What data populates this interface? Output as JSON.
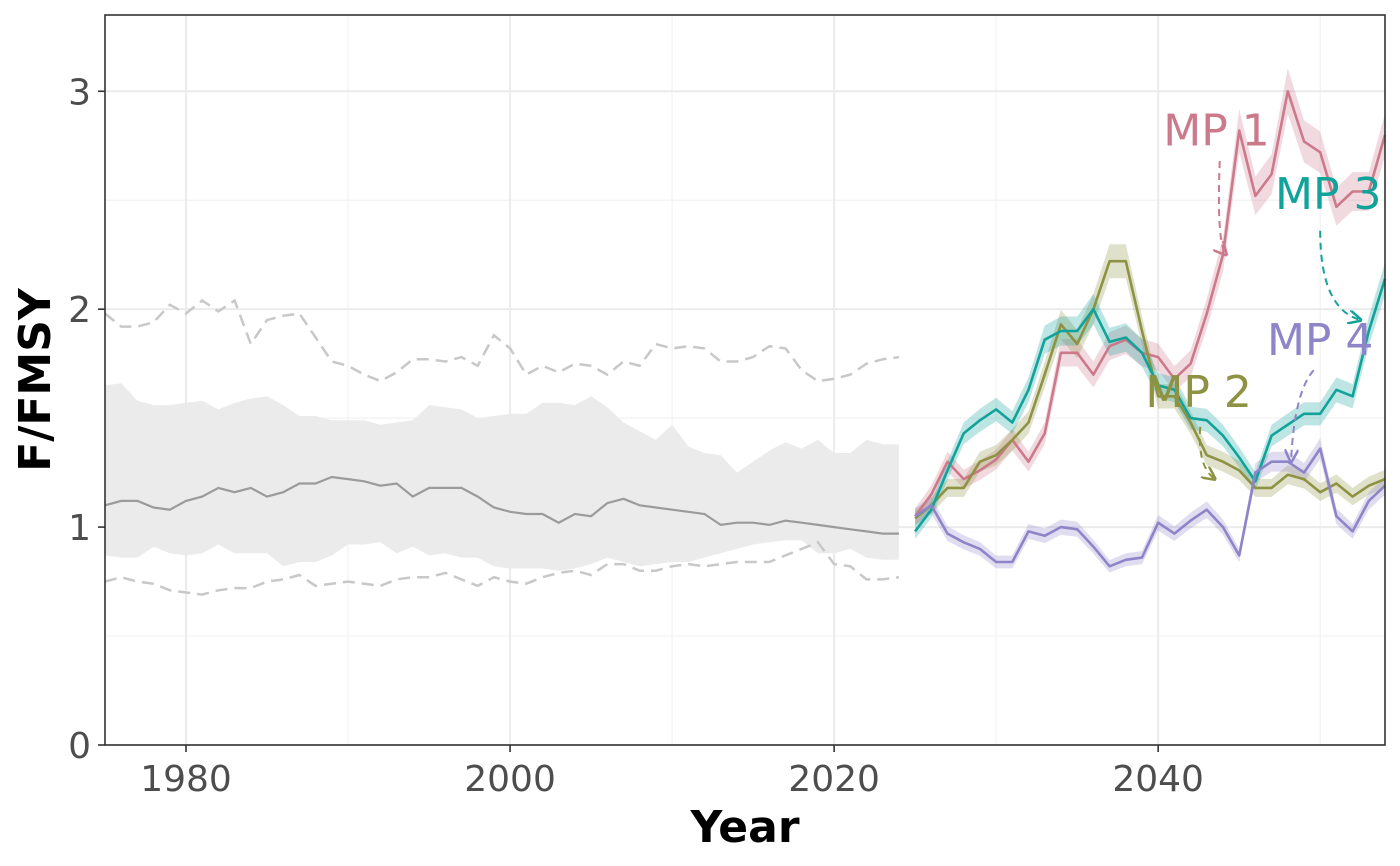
{
  "chart_data": {
    "type": "line",
    "title": "",
    "xlabel": "Year",
    "ylabel": "F/FMSY",
    "xlim": [
      1975,
      2054
    ],
    "ylim": [
      0,
      3.35
    ],
    "x_ticks": [
      1980,
      2000,
      2020,
      2040
    ],
    "y_ticks": [
      0,
      1,
      2,
      3
    ],
    "grid": true,
    "historical": {
      "x": [
        1975,
        1976,
        1977,
        1978,
        1979,
        1980,
        1981,
        1982,
        1983,
        1984,
        1985,
        1986,
        1987,
        1988,
        1989,
        1990,
        1991,
        1992,
        1993,
        1994,
        1995,
        1996,
        1997,
        1998,
        1999,
        2000,
        2001,
        2002,
        2003,
        2004,
        2005,
        2006,
        2007,
        2008,
        2009,
        2010,
        2011,
        2012,
        2013,
        2014,
        2015,
        2016,
        2017,
        2018,
        2019,
        2020,
        2021,
        2022,
        2023,
        2024
      ],
      "median": [
        1.1,
        1.12,
        1.12,
        1.09,
        1.08,
        1.12,
        1.14,
        1.18,
        1.16,
        1.18,
        1.14,
        1.16,
        1.2,
        1.2,
        1.23,
        1.22,
        1.21,
        1.19,
        1.2,
        1.14,
        1.18,
        1.18,
        1.18,
        1.14,
        1.09,
        1.07,
        1.06,
        1.06,
        1.02,
        1.06,
        1.05,
        1.11,
        1.13,
        1.1,
        1.09,
        1.08,
        1.07,
        1.06,
        1.01,
        1.02,
        1.02,
        1.01,
        1.03,
        1.02,
        1.01,
        1.0,
        0.99,
        0.98,
        0.97,
        0.97
      ],
      "band_upper": [
        1.65,
        1.66,
        1.58,
        1.56,
        1.56,
        1.57,
        1.58,
        1.54,
        1.57,
        1.59,
        1.6,
        1.56,
        1.51,
        1.51,
        1.49,
        1.49,
        1.49,
        1.47,
        1.48,
        1.49,
        1.56,
        1.55,
        1.54,
        1.5,
        1.51,
        1.52,
        1.52,
        1.57,
        1.57,
        1.56,
        1.6,
        1.55,
        1.48,
        1.44,
        1.4,
        1.47,
        1.37,
        1.34,
        1.33,
        1.25,
        1.3,
        1.35,
        1.39,
        1.36,
        1.4,
        1.34,
        1.34,
        1.4,
        1.38,
        1.38
      ],
      "band_lower": [
        0.87,
        0.86,
        0.86,
        0.91,
        0.88,
        0.87,
        0.88,
        0.92,
        0.88,
        0.88,
        0.88,
        0.82,
        0.84,
        0.84,
        0.87,
        0.92,
        0.92,
        0.93,
        0.88,
        0.91,
        0.87,
        0.88,
        0.86,
        0.86,
        0.82,
        0.81,
        0.81,
        0.81,
        0.8,
        0.81,
        0.83,
        0.86,
        0.84,
        0.82,
        0.83,
        0.84,
        0.84,
        0.86,
        0.88,
        0.9,
        0.92,
        0.93,
        0.94,
        0.94,
        0.88,
        0.88,
        0.9,
        0.86,
        0.85,
        0.85
      ],
      "dashed_upper": [
        1.98,
        1.92,
        1.92,
        1.94,
        2.02,
        1.98,
        2.04,
        1.99,
        2.04,
        1.84,
        1.95,
        1.97,
        1.98,
        1.87,
        1.76,
        1.74,
        1.7,
        1.67,
        1.71,
        1.77,
        1.77,
        1.76,
        1.78,
        1.74,
        1.88,
        1.82,
        1.7,
        1.74,
        1.71,
        1.75,
        1.74,
        1.7,
        1.76,
        1.74,
        1.84,
        1.82,
        1.83,
        1.82,
        1.76,
        1.76,
        1.78,
        1.83,
        1.82,
        1.72,
        1.67,
        1.68,
        1.7,
        1.75,
        1.77,
        1.78
      ],
      "dashed_lower": [
        0.75,
        0.77,
        0.75,
        0.74,
        0.71,
        0.7,
        0.69,
        0.71,
        0.72,
        0.72,
        0.75,
        0.76,
        0.78,
        0.73,
        0.74,
        0.75,
        0.74,
        0.73,
        0.76,
        0.77,
        0.77,
        0.79,
        0.76,
        0.73,
        0.77,
        0.75,
        0.74,
        0.77,
        0.79,
        0.8,
        0.78,
        0.83,
        0.83,
        0.8,
        0.8,
        0.82,
        0.83,
        0.82,
        0.83,
        0.84,
        0.84,
        0.84,
        0.87,
        0.9,
        0.93,
        0.83,
        0.82,
        0.76,
        0.76,
        0.77
      ]
    },
    "series": [
      {
        "name": "MP 1",
        "x": [
          2025,
          2026,
          2027,
          2028,
          2029,
          2030,
          2031,
          2032,
          2033,
          2034,
          2035,
          2036,
          2037,
          2038,
          2039,
          2040,
          2041,
          2042,
          2043,
          2044,
          2045,
          2046,
          2047,
          2048,
          2049,
          2050,
          2051,
          2052,
          2053,
          2054
        ],
        "values": [
          1.05,
          1.15,
          1.3,
          1.22,
          1.26,
          1.31,
          1.4,
          1.3,
          1.43,
          1.8,
          1.8,
          1.7,
          1.83,
          1.86,
          1.8,
          1.78,
          1.68,
          1.75,
          1.98,
          2.25,
          2.82,
          2.52,
          2.62,
          3.0,
          2.77,
          2.72,
          2.47,
          2.54,
          2.54,
          2.8
        ]
      },
      {
        "name": "MP 2",
        "x": [
          2025,
          2026,
          2027,
          2028,
          2029,
          2030,
          2031,
          2032,
          2033,
          2034,
          2035,
          2036,
          2037,
          2038,
          2039,
          2040,
          2041,
          2042,
          2043,
          2044,
          2045,
          2046,
          2047,
          2048,
          2049,
          2050,
          2051,
          2052,
          2053,
          2054
        ],
        "values": [
          1.04,
          1.1,
          1.18,
          1.18,
          1.3,
          1.33,
          1.4,
          1.48,
          1.7,
          1.93,
          1.84,
          2.0,
          2.22,
          2.22,
          1.9,
          1.6,
          1.6,
          1.48,
          1.33,
          1.3,
          1.26,
          1.18,
          1.18,
          1.24,
          1.22,
          1.16,
          1.2,
          1.14,
          1.19,
          1.22
        ]
      },
      {
        "name": "MP 3",
        "x": [
          2025,
          2026,
          2027,
          2028,
          2029,
          2030,
          2031,
          2032,
          2033,
          2034,
          2035,
          2036,
          2037,
          2038,
          2039,
          2040,
          2041,
          2042,
          2043,
          2044,
          2045,
          2046,
          2047,
          2048,
          2049,
          2050,
          2051,
          2052,
          2053,
          2054
        ],
        "values": [
          0.98,
          1.08,
          1.26,
          1.43,
          1.49,
          1.54,
          1.48,
          1.63,
          1.86,
          1.9,
          1.9,
          2.0,
          1.85,
          1.87,
          1.8,
          1.65,
          1.63,
          1.5,
          1.49,
          1.42,
          1.32,
          1.21,
          1.42,
          1.47,
          1.52,
          1.52,
          1.63,
          1.6,
          1.9,
          2.14
        ]
      },
      {
        "name": "MP 4",
        "x": [
          2025,
          2026,
          2027,
          2028,
          2029,
          2030,
          2031,
          2032,
          2033,
          2034,
          2035,
          2036,
          2037,
          2038,
          2039,
          2040,
          2041,
          2042,
          2043,
          2044,
          2045,
          2046,
          2047,
          2048,
          2049,
          2050,
          2051,
          2052,
          2053,
          2054
        ],
        "values": [
          1.05,
          1.1,
          0.97,
          0.93,
          0.9,
          0.84,
          0.84,
          0.98,
          0.96,
          1.0,
          0.99,
          0.91,
          0.82,
          0.85,
          0.86,
          1.02,
          0.97,
          1.03,
          1.08,
          1.0,
          0.87,
          1.25,
          1.3,
          1.3,
          1.25,
          1.36,
          1.05,
          0.98,
          1.12,
          1.19
        ]
      }
    ],
    "colors": {
      "MP 1": "#cc7a8b",
      "MP 2": "#8e9243",
      "MP 3": "#11a29a",
      "MP 4": "#8e85c8",
      "historical_median": "#9b9b9b",
      "historical_band": "#ebebeb",
      "historical_dashed": "#c8c8c8"
    },
    "annotations": [
      {
        "text": "MP 1",
        "series": "MP 1"
      },
      {
        "text": "MP 2",
        "series": "MP 2"
      },
      {
        "text": "MP 3",
        "series": "MP 3"
      },
      {
        "text": "MP 4",
        "series": "MP 4"
      }
    ]
  }
}
